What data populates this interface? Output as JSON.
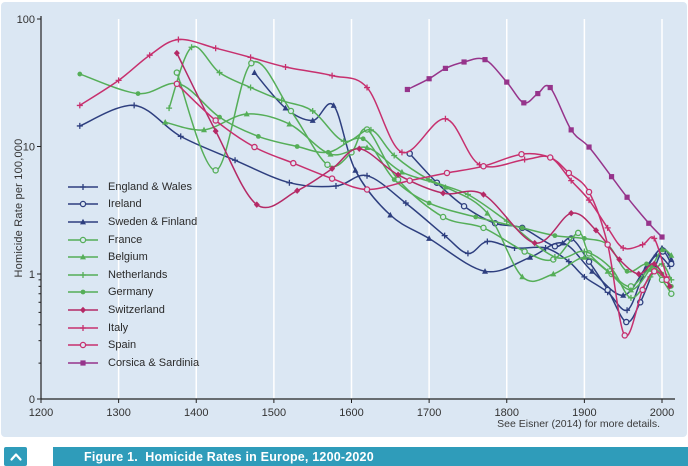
{
  "figure": {
    "caption": "Figure 1.  Homicide Rates in Europe, 1200-2020",
    "attribution": "See Eisner (2014) for more details.",
    "collapse_icon": "chevron-up"
  },
  "colors": {
    "panel_bg": "#dbe7f3",
    "grid": "#ffffff",
    "axis": "#222222",
    "tick_text": "#333333",
    "caption_bar": "#2f9cba",
    "caption_text": "#ffffff"
  },
  "chart_data": {
    "type": "line",
    "title": "",
    "xlabel": "",
    "ylabel": "Homicide Rate per 100,000",
    "y_scale": "log",
    "xlim": [
      1200,
      2020
    ],
    "ylim": [
      0.105,
      100
    ],
    "x_ticks": [
      1200,
      1300,
      1400,
      1500,
      1600,
      1700,
      1800,
      1900,
      2000
    ],
    "y_tick_labels": [
      "100",
      "10",
      "1",
      "0"
    ],
    "y_tick_values": [
      100,
      10,
      1,
      0.105
    ],
    "y_minor_ticks": [
      0.9,
      0.8,
      0.7,
      0.6,
      0.5,
      0.4,
      0.3,
      0.2
    ],
    "grid": "vertical",
    "legend_position": "inside-left",
    "series": [
      {
        "name": "England & Wales",
        "color": "#2e3f7f",
        "marker": "plus",
        "points": [
          [
            1250,
            14.5
          ],
          [
            1320,
            21
          ],
          [
            1380,
            12
          ],
          [
            1450,
            7.8
          ],
          [
            1520,
            5.2
          ],
          [
            1580,
            4.9
          ],
          [
            1620,
            5.9
          ],
          [
            1670,
            3.6
          ],
          [
            1720,
            2.0
          ],
          [
            1750,
            1.45
          ],
          [
            1775,
            1.8
          ],
          [
            1810,
            1.6
          ],
          [
            1850,
            1.6
          ],
          [
            1880,
            1.25
          ],
          [
            1900,
            0.95
          ],
          [
            1930,
            0.72
          ],
          [
            1955,
            0.52
          ],
          [
            1975,
            0.95
          ],
          [
            1993,
            1.4
          ],
          [
            2010,
            1.15
          ]
        ]
      },
      {
        "name": "Ireland",
        "color": "#2e3f7f",
        "marker": "circle-open",
        "points": [
          [
            1675,
            8.8
          ],
          [
            1710,
            5.2
          ],
          [
            1745,
            3.4
          ],
          [
            1785,
            2.5
          ],
          [
            1820,
            2.3
          ],
          [
            1862,
            1.65
          ],
          [
            1883,
            1.9
          ],
          [
            1906,
            1.25
          ],
          [
            1930,
            0.75
          ],
          [
            1954,
            0.42
          ],
          [
            1972,
            0.6
          ],
          [
            1990,
            1.1
          ],
          [
            2001,
            1.5
          ],
          [
            2012,
            1.2
          ]
        ]
      },
      {
        "name": "Sweden & Finland",
        "color": "#2e3f7f",
        "marker": "triangle",
        "points": [
          [
            1475,
            38
          ],
          [
            1515,
            20
          ],
          [
            1550,
            16
          ],
          [
            1577,
            21
          ],
          [
            1605,
            6.5
          ],
          [
            1650,
            2.9
          ],
          [
            1700,
            1.9
          ],
          [
            1772,
            1.05
          ],
          [
            1830,
            1.35
          ],
          [
            1872,
            1.75
          ],
          [
            1910,
            1.05
          ],
          [
            1950,
            0.68
          ],
          [
            1980,
            1.15
          ],
          [
            2000,
            1.6
          ],
          [
            2012,
            1.3
          ]
        ]
      },
      {
        "name": "France",
        "color": "#55ae58",
        "marker": "circle-open",
        "points": [
          [
            1375,
            38
          ],
          [
            1425,
            6.5
          ],
          [
            1471,
            45
          ],
          [
            1522,
            19
          ],
          [
            1569,
            7.2
          ],
          [
            1600,
            9
          ],
          [
            1620,
            13.6
          ],
          [
            1660,
            5.5
          ],
          [
            1718,
            2.8
          ],
          [
            1770,
            2.3
          ],
          [
            1823,
            1.5
          ],
          [
            1860,
            1.3
          ],
          [
            1892,
            2.1
          ],
          [
            1906,
            1.45
          ],
          [
            1935,
            1.0
          ],
          [
            1960,
            0.8
          ],
          [
            1985,
            1.1
          ],
          [
            2000,
            0.9
          ],
          [
            2012,
            0.7
          ]
        ]
      },
      {
        "name": "Belgium",
        "color": "#55ae58",
        "marker": "triangle",
        "points": [
          [
            1360,
            15.5
          ],
          [
            1410,
            13.5
          ],
          [
            1465,
            18
          ],
          [
            1520,
            15
          ],
          [
            1573,
            8.7
          ],
          [
            1620,
            9.8
          ],
          [
            1665,
            6.3
          ],
          [
            1721,
            4.8
          ],
          [
            1775,
            3.0
          ],
          [
            1820,
            0.95
          ],
          [
            1860,
            1.0
          ],
          [
            1900,
            1.35
          ],
          [
            1930,
            1.05
          ],
          [
            1960,
            0.75
          ],
          [
            1985,
            1.1
          ],
          [
            2000,
            1.55
          ],
          [
            2012,
            1.4
          ]
        ]
      },
      {
        "name": "Netherlands",
        "color": "#55ae58",
        "marker": "plus",
        "points": [
          [
            1365,
            20
          ],
          [
            1394,
            60
          ],
          [
            1430,
            38
          ],
          [
            1470,
            29
          ],
          [
            1510,
            23
          ],
          [
            1550,
            19
          ],
          [
            1590,
            11
          ],
          [
            1625,
            13.5
          ],
          [
            1655,
            8.5
          ],
          [
            1700,
            5.5
          ],
          [
            1750,
            4.2
          ],
          [
            1800,
            2.6
          ],
          [
            1862,
            1.36
          ],
          [
            1900,
            1.5
          ],
          [
            1935,
            1.1
          ],
          [
            1960,
            0.65
          ],
          [
            1985,
            0.95
          ],
          [
            2000,
            1.2
          ],
          [
            2012,
            0.9
          ]
        ]
      },
      {
        "name": "Germany",
        "color": "#55ae58",
        "marker": "circle",
        "points": [
          [
            1250,
            37
          ],
          [
            1325,
            26
          ],
          [
            1378,
            31
          ],
          [
            1430,
            17
          ],
          [
            1480,
            12
          ],
          [
            1530,
            10
          ],
          [
            1570,
            9
          ],
          [
            1615,
            11.5
          ],
          [
            1655,
            5.5
          ],
          [
            1700,
            3.6
          ],
          [
            1760,
            2.8
          ],
          [
            1820,
            2.3
          ],
          [
            1862,
            2.0
          ],
          [
            1900,
            1.9
          ],
          [
            1930,
            1.7
          ],
          [
            1955,
            1.05
          ],
          [
            1980,
            1.2
          ],
          [
            2000,
            1.0
          ],
          [
            2012,
            0.8
          ]
        ]
      },
      {
        "name": "Switzerland",
        "color": "#b52a66",
        "marker": "diamond",
        "points": [
          [
            1375,
            54
          ],
          [
            1425,
            13.2
          ],
          [
            1478,
            3.5
          ],
          [
            1530,
            4.5
          ],
          [
            1575,
            6.7
          ],
          [
            1610,
            9.6
          ],
          [
            1660,
            6.0
          ],
          [
            1718,
            4.3
          ],
          [
            1770,
            4.2
          ],
          [
            1836,
            1.75
          ],
          [
            1883,
            3.0
          ],
          [
            1915,
            2.2
          ],
          [
            1945,
            1.3
          ],
          [
            1970,
            1.0
          ],
          [
            1990,
            1.2
          ],
          [
            2010,
            0.8
          ]
        ]
      },
      {
        "name": "Italy",
        "color": "#c7306e",
        "marker": "plus",
        "points": [
          [
            1250,
            21
          ],
          [
            1300,
            33
          ],
          [
            1340,
            52
          ],
          [
            1377,
            69
          ],
          [
            1425,
            59
          ],
          [
            1470,
            50
          ],
          [
            1515,
            42
          ],
          [
            1575,
            36
          ],
          [
            1620,
            29
          ],
          [
            1665,
            9
          ],
          [
            1721,
            16.5
          ],
          [
            1765,
            7.2
          ],
          [
            1823,
            7.9
          ],
          [
            1856,
            8.2
          ],
          [
            1883,
            5.4
          ],
          [
            1906,
            3.8
          ],
          [
            1930,
            2.3
          ],
          [
            1950,
            1.6
          ],
          [
            1975,
            1.7
          ],
          [
            1990,
            1.9
          ],
          [
            2006,
            0.95
          ]
        ]
      },
      {
        "name": "Spain",
        "color": "#c7306e",
        "marker": "circle-open",
        "points": [
          [
            1375,
            31
          ],
          [
            1425,
            16
          ],
          [
            1475,
            9.9
          ],
          [
            1525,
            7.4
          ],
          [
            1575,
            5.6
          ],
          [
            1620,
            4.6
          ],
          [
            1675,
            5.4
          ],
          [
            1723,
            6.2
          ],
          [
            1770,
            7.0
          ],
          [
            1819,
            8.7
          ],
          [
            1856,
            8.2
          ],
          [
            1880,
            6.2
          ],
          [
            1906,
            4.4
          ],
          [
            1930,
            1.7
          ],
          [
            1952,
            0.33
          ],
          [
            1975,
            0.75
          ],
          [
            1990,
            1.05
          ],
          [
            2006,
            0.9
          ]
        ]
      },
      {
        "name": "Corsica & Sardinia",
        "color": "#96348b",
        "marker": "square",
        "points": [
          [
            1672,
            28
          ],
          [
            1700,
            34
          ],
          [
            1721,
            41
          ],
          [
            1745,
            46
          ],
          [
            1772,
            48
          ],
          [
            1800,
            32
          ],
          [
            1822,
            22
          ],
          [
            1840,
            26
          ],
          [
            1856,
            29
          ],
          [
            1883,
            13.5
          ],
          [
            1906,
            9.9
          ],
          [
            1935,
            5.8
          ],
          [
            1955,
            4.0
          ],
          [
            1983,
            2.5
          ],
          [
            2000,
            1.95
          ]
        ]
      }
    ]
  }
}
